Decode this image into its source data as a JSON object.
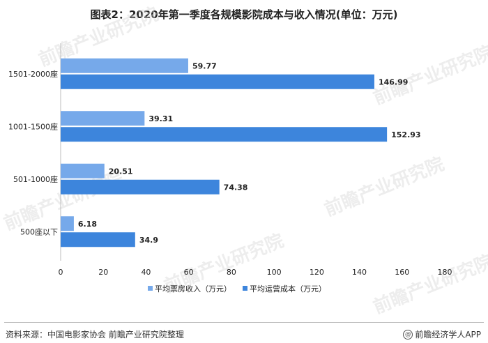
{
  "title": "图表2：2020年第一季度各规模影院成本与收入情况(单位：万元)",
  "watermark": "前瞻产业研究院",
  "footer": {
    "source": "资料来源：中国电影家协会 前瞻产业研究院整理",
    "brand": "前瞻经济学人APP",
    "brand_icon": "@"
  },
  "colors": {
    "series_1": "#76a9ea",
    "series_2": "#3d85dc",
    "axis": "#bdbdbd",
    "watermark": "#d8d8d8"
  },
  "chart_data": {
    "type": "bar",
    "orientation": "horizontal",
    "categories": [
      "1501-2000座",
      "1001-1500座",
      "501-1000座",
      "500座以下"
    ],
    "series": [
      {
        "name": "平均票房收入（万元）",
        "values": [
          59.77,
          39.31,
          20.51,
          6.18
        ]
      },
      {
        "name": "平均运营成本（万元）",
        "values": [
          146.99,
          152.93,
          74.38,
          34.9
        ]
      }
    ],
    "value_labels": [
      [
        "59.77",
        "39.31",
        "20.51",
        "6.18"
      ],
      [
        "146.99",
        "152.93",
        "74.38",
        "34.9"
      ]
    ],
    "xlim": [
      0,
      180
    ],
    "xticks": [
      "0",
      "20",
      "40",
      "60",
      "80",
      "100",
      "120",
      "140",
      "160",
      "180"
    ],
    "grid": false,
    "legend_position": "bottom"
  }
}
